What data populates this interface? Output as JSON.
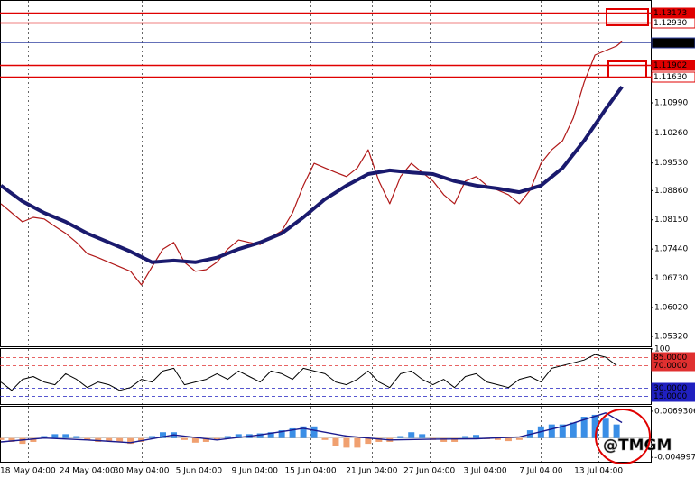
{
  "chart_data": [
    {
      "type": "line",
      "ylim": [
        1.05079,
        1.13464
      ],
      "xlim": [
        0,
        180.5
      ],
      "yticks": [
        {
          "value": 1.1099,
          "label": "1.10990"
        },
        {
          "value": 1.1026,
          "label": "1.10260"
        },
        {
          "value": 1.0953,
          "label": "1.09530"
        },
        {
          "value": 1.0886,
          "label": "1.08860"
        },
        {
          "value": 1.0815,
          "label": "1.08150"
        },
        {
          "value": 1.0744,
          "label": "1.07440"
        },
        {
          "value": 1.0673,
          "label": "1.06730"
        },
        {
          "value": 1.0602,
          "label": "1.06020"
        },
        {
          "value": 1.0532,
          "label": "1.05320"
        }
      ],
      "hlines": [
        {
          "value": 1.13173,
          "label": "1.13173",
          "color": "#e00000",
          "label_fill": "#e00000"
        },
        {
          "value": 1.1293,
          "label": "1.12930",
          "color": "#e00000",
          "label_fill": "#ffffff"
        },
        {
          "value": 1.1245,
          "label": "1.12450",
          "color": "#3040a0",
          "label_fill": "#000000"
        },
        {
          "value": 1.11902,
          "label": "1.11902",
          "color": "#e00000",
          "label_fill": "#e00000"
        },
        {
          "value": 1.1163,
          "label": "1.11630",
          "color": "#e00000",
          "label_fill": "#ffffff"
        }
      ],
      "series": [
        {
          "color": "#b01818",
          "width": 1.2,
          "x": [
            0,
            3,
            6,
            9,
            12,
            15,
            18,
            21,
            24,
            27,
            30,
            33,
            36,
            39,
            42,
            45,
            48,
            51,
            54,
            57,
            60,
            63,
            66,
            69,
            72,
            75,
            78,
            81,
            84,
            87,
            90,
            93,
            96,
            99,
            102,
            105,
            108,
            111,
            114,
            117,
            120,
            123,
            126,
            129,
            132,
            135,
            138,
            141,
            144,
            147,
            150,
            153,
            156,
            159,
            162,
            165,
            168,
            171,
            172.5
          ],
          "values": [
            1.0854,
            1.0832,
            1.081,
            1.0821,
            1.0817,
            1.0799,
            1.0782,
            1.076,
            1.0733,
            1.0723,
            1.0712,
            1.0701,
            1.069,
            1.0657,
            1.0701,
            1.0744,
            1.076,
            1.0712,
            1.069,
            1.0694,
            1.0712,
            1.0744,
            1.0766,
            1.076,
            1.0755,
            1.0773,
            1.0788,
            1.0832,
            1.0898,
            1.0952,
            1.0941,
            1.093,
            1.092,
            1.0941,
            1.0985,
            1.0909,
            1.0854,
            1.092,
            1.0952,
            1.093,
            1.0909,
            1.0876,
            1.0854,
            1.0909,
            1.092,
            1.0898,
            1.0887,
            1.0876,
            1.0854,
            1.0887,
            1.0952,
            1.0985,
            1.1007,
            1.1062,
            1.1149,
            1.1215,
            1.1226,
            1.1237,
            1.1248
          ]
        },
        {
          "color": "#1a1a6e",
          "width": 4,
          "x": [
            0,
            6,
            12,
            18,
            24,
            30,
            36,
            42,
            48,
            54,
            60,
            66,
            72,
            78,
            84,
            90,
            96,
            102,
            108,
            114,
            120,
            126,
            132,
            138,
            144,
            150,
            156,
            162,
            168,
            172.5
          ],
          "values": [
            1.0898,
            1.086,
            1.0832,
            1.081,
            1.0782,
            1.076,
            1.0738,
            1.0712,
            1.0716,
            1.0712,
            1.0723,
            1.0744,
            1.076,
            1.0782,
            1.0821,
            1.0865,
            1.0898,
            1.0926,
            1.0935,
            1.093,
            1.0926,
            1.0909,
            1.0898,
            1.0891,
            1.0882,
            1.0898,
            1.0941,
            1.1007,
            1.1084,
            1.1138
          ]
        }
      ]
    },
    {
      "type": "line",
      "ylim": [
        0,
        100
      ],
      "xlim": [
        0,
        180.5
      ],
      "yticks": [
        100
      ],
      "hlines": [
        {
          "value": 85,
          "label": "85.0000",
          "color": "#e03030",
          "label_fill": "#e03030"
        },
        {
          "value": 70,
          "label": "70.0000",
          "color": "#e03030",
          "label_fill": "#e03030"
        },
        {
          "value": 30,
          "label": "30.0000",
          "color": "#2020c0",
          "label_fill": "#2020c0"
        },
        {
          "value": 15,
          "label": "15.0000",
          "color": "#2020c0",
          "label_fill": "#2020c0"
        }
      ],
      "series": [
        {
          "color": "#000000",
          "width": 1,
          "x": [
            0,
            3,
            6,
            9,
            12,
            15,
            18,
            21,
            24,
            27,
            30,
            33,
            36,
            39,
            42,
            45,
            48,
            51,
            54,
            57,
            60,
            63,
            66,
            69,
            72,
            75,
            78,
            81,
            84,
            87,
            90,
            93,
            96,
            99,
            102,
            105,
            108,
            111,
            114,
            117,
            120,
            123,
            126,
            129,
            132,
            135,
            138,
            141,
            144,
            147,
            150,
            153,
            156,
            159,
            162,
            165,
            168,
            171
          ],
          "values": [
            40,
            25,
            45,
            50,
            40,
            35,
            55,
            45,
            30,
            40,
            35,
            25,
            30,
            45,
            40,
            60,
            65,
            35,
            40,
            45,
            55,
            45,
            60,
            50,
            40,
            60,
            55,
            45,
            65,
            60,
            55,
            40,
            35,
            45,
            60,
            40,
            30,
            55,
            60,
            45,
            35,
            45,
            30,
            50,
            55,
            40,
            35,
            30,
            45,
            50,
            40,
            65,
            70,
            75,
            80,
            90,
            85,
            70
          ]
        }
      ]
    },
    {
      "type": "bar",
      "ylim": [
        -0.00614,
        0.00808
      ],
      "xlim": [
        0,
        180.5
      ],
      "yticks": [
        0.0069306,
        -0.004997
      ],
      "positive_color": "#3a8ee6",
      "negative_color": "#f0a070",
      "xticks": [
        {
          "value": 7.5,
          "label": "18 May 04:00"
        },
        {
          "value": 24,
          "label": "24 May 04:00"
        },
        {
          "value": 39,
          "label": "30 May 04:00"
        },
        {
          "value": 55,
          "label": "5 Jun 04:00"
        },
        {
          "value": 70.5,
          "label": "9 Jun 04:00"
        },
        {
          "value": 86,
          "label": "15 Jun 04:00"
        },
        {
          "value": 103,
          "label": "21 Jun 04:00"
        },
        {
          "value": 119,
          "label": "27 Jun 04:00"
        },
        {
          "value": 134.5,
          "label": "3 Jul 04:00"
        },
        {
          "value": 150,
          "label": "7 Jul 04:00"
        },
        {
          "value": 166,
          "label": "13 Jul 04:00"
        }
      ],
      "x": [
        0,
        3,
        6,
        9,
        12,
        15,
        18,
        21,
        24,
        27,
        30,
        33,
        36,
        39,
        42,
        45,
        48,
        51,
        54,
        57,
        60,
        63,
        66,
        69,
        72,
        75,
        78,
        81,
        84,
        87,
        90,
        93,
        96,
        99,
        102,
        105,
        108,
        111,
        114,
        117,
        120,
        123,
        126,
        129,
        132,
        135,
        138,
        141,
        144,
        147,
        150,
        153,
        156,
        159,
        162,
        165,
        168,
        171
      ],
      "values": [
        -0.0005,
        -0.001,
        -0.0015,
        -0.001,
        0.0005,
        0.001,
        0.001,
        0.0005,
        -0.0005,
        -0.001,
        -0.0008,
        -0.001,
        -0.0015,
        -0.001,
        0.0005,
        0.0015,
        0.0015,
        -0.0005,
        -0.0012,
        -0.001,
        -0.0003,
        0.0005,
        0.001,
        0.001,
        0.0012,
        0.0015,
        0.002,
        0.0025,
        0.003,
        0.003,
        -0.0005,
        -0.002,
        -0.0025,
        -0.0025,
        -0.0015,
        -0.001,
        -0.001,
        0.0005,
        0.0015,
        0.001,
        -0.0005,
        -0.001,
        -0.001,
        0.0005,
        0.0008,
        -0.0003,
        -0.0005,
        -0.0008,
        -0.0005,
        0.002,
        0.003,
        0.0035,
        0.0035,
        0.004,
        0.0055,
        0.006,
        0.005,
        0.0035
      ],
      "lines": [
        {
          "color": "#1a1a8e",
          "x": [
            0,
            12,
            24,
            36,
            48,
            60,
            72,
            84,
            96,
            108,
            120,
            132,
            144,
            156,
            168,
            172.5
          ],
          "values": [
            -0.001,
            0,
            -0.0005,
            -0.0012,
            0.0008,
            -0.0005,
            0.0008,
            0.0025,
            0.0005,
            -0.0005,
            -0.0003,
            -0.0002,
            0.0003,
            0.003,
            0.0065,
            0.004
          ]
        }
      ],
      "watermark": "@TMGM"
    }
  ]
}
